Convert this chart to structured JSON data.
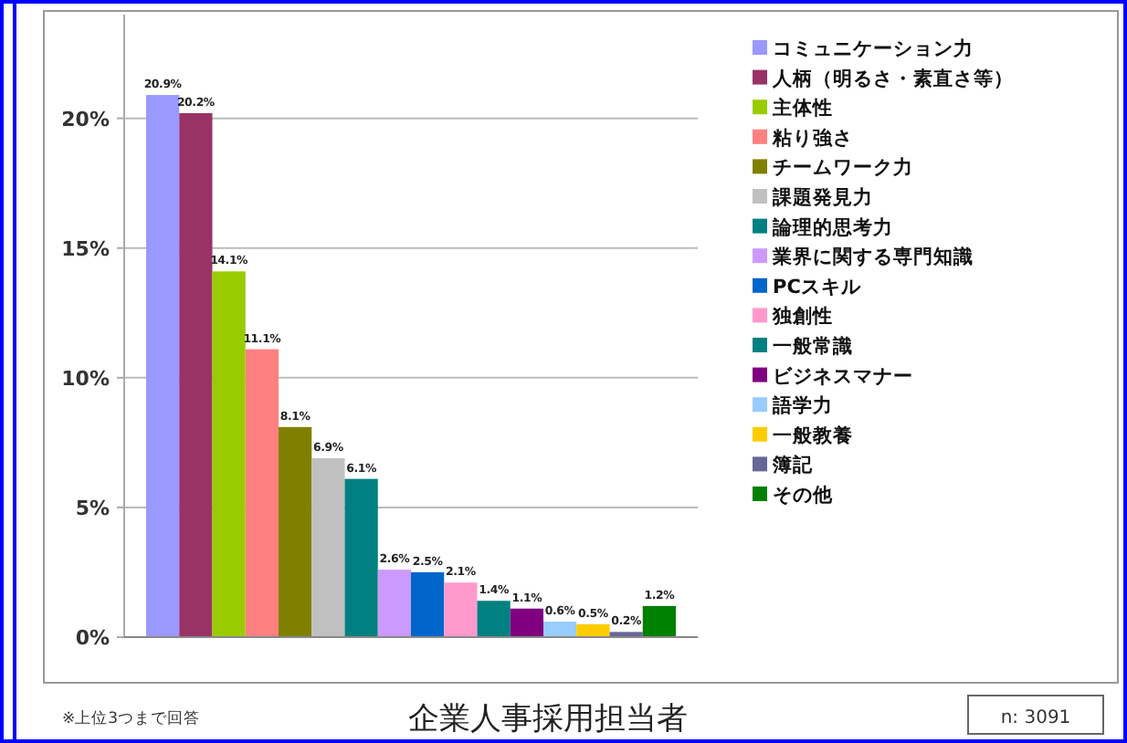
{
  "chart_data": {
    "type": "bar",
    "title": "企業人事採用担当者",
    "annotations": [
      "※上位3つまで回答",
      "n:  3091"
    ],
    "categories": [
      null
    ],
    "series": [
      {
        "name": "コミュニケーション力",
        "color": "#9999ff",
        "values": [
          20.9
        ],
        "value_labels": [
          "20.9%"
        ]
      },
      {
        "name": "人柄（明るさ・素直さ等）",
        "color": "#993366",
        "values": [
          20.2
        ],
        "value_labels": [
          "20.2%"
        ]
      },
      {
        "name": "主体性",
        "color": "#99cc00",
        "values": [
          14.1
        ],
        "value_labels": [
          "14.1%"
        ]
      },
      {
        "name": "粘り強さ",
        "color": "#ff8080",
        "values": [
          11.1
        ],
        "value_labels": [
          "11.1%"
        ]
      },
      {
        "name": "チームワーク力",
        "color": "#808000",
        "values": [
          8.1
        ],
        "value_labels": [
          "8.1%"
        ]
      },
      {
        "name": "課題発見力",
        "color": "#c0c0c0",
        "values": [
          6.9
        ],
        "value_labels": [
          "6.9%"
        ]
      },
      {
        "name": "論理的思考力",
        "color": "#008080",
        "values": [
          6.1
        ],
        "value_labels": [
          "6.1%"
        ]
      },
      {
        "name": "業界に関する専門知識",
        "color": "#cc99ff",
        "values": [
          2.6
        ],
        "value_labels": [
          "2.6%"
        ]
      },
      {
        "name": "PCスキル",
        "color": "#0066cc",
        "values": [
          2.5
        ],
        "value_labels": [
          "2.5%"
        ]
      },
      {
        "name": "独創性",
        "color": "#ff99cc",
        "values": [
          2.1
        ],
        "value_labels": [
          "2.1%"
        ]
      },
      {
        "name": "一般常識",
        "color": "#008080",
        "values": [
          1.4
        ],
        "value_labels": [
          "1.4%"
        ]
      },
      {
        "name": "ビジネスマナー",
        "color": "#800080",
        "values": [
          1.1
        ],
        "value_labels": [
          "1.1%"
        ]
      },
      {
        "name": "語学力",
        "color": "#99ccff",
        "values": [
          0.6
        ],
        "value_labels": [
          "0.6%"
        ]
      },
      {
        "name": "一般教養",
        "color": "#ffcc00",
        "values": [
          0.5
        ],
        "value_labels": [
          "0.5%"
        ]
      },
      {
        "name": "簿記",
        "color": "#666699",
        "values": [
          0.2
        ],
        "value_labels": [
          "0.2%"
        ]
      },
      {
        "name": "その他",
        "color": "#008000",
        "values": [
          1.2
        ],
        "value_labels": [
          "1.2%"
        ]
      }
    ],
    "ylim": [
      0,
      24
    ],
    "yticks": [
      {
        "value": 0,
        "label": "0%"
      },
      {
        "value": 5,
        "label": "5%"
      },
      {
        "value": 10,
        "label": "10%"
      },
      {
        "value": 15,
        "label": "15%"
      },
      {
        "value": 20,
        "label": "20%"
      }
    ],
    "grid": "y",
    "legend": "right",
    "tick_labels": "y"
  }
}
